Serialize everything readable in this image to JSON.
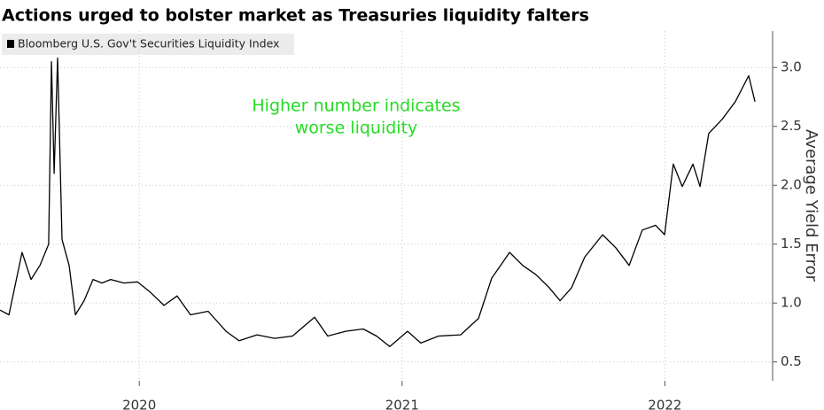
{
  "chart_data": {
    "type": "line",
    "title": "Actions urged to bolster market as Treasuries liquidity falters",
    "y_label": "Average Yield Error",
    "annotation": [
      "Higher number indicates",
      "worse liquidity"
    ],
    "annotation_color": "#22dd22",
    "grid": true,
    "xlim": [
      2019.47,
      2022.41
    ],
    "xticks": [
      2020,
      2021,
      2022
    ],
    "ylim": [
      0.34,
      3.31
    ],
    "yticks": [
      0.5,
      {
        "value": 1,
        "label": "1.0"
      },
      1.5,
      {
        "value": 2,
        "label": "2.0"
      },
      2.5,
      {
        "value": 3,
        "label": "3.0"
      }
    ],
    "x": [
      2019.47,
      2019.504,
      2019.554,
      2019.588,
      2019.622,
      2019.655,
      2019.666,
      2019.676,
      2019.689,
      2019.706,
      2019.733,
      2019.757,
      2019.79,
      2019.824,
      2019.858,
      2019.891,
      2019.942,
      2019.993,
      2020.043,
      2020.094,
      2020.144,
      2020.195,
      2020.262,
      2020.33,
      2020.38,
      2020.448,
      2020.515,
      2020.583,
      2020.667,
      2020.717,
      2020.785,
      2020.852,
      2020.903,
      2020.953,
      2021.021,
      2021.071,
      2021.139,
      2021.223,
      2021.291,
      2021.341,
      2021.375,
      2021.409,
      2021.459,
      2021.51,
      2021.56,
      2021.601,
      2021.645,
      2021.695,
      2021.763,
      2021.813,
      2021.864,
      2021.914,
      2021.965,
      2021.999,
      2022.032,
      2022.066,
      2022.107,
      2022.134,
      2022.167,
      2022.218,
      2022.268,
      2022.319,
      2022.343
    ],
    "series": [
      {
        "name": "Bloomberg U.S. Gov't Securities Liquidity Index",
        "color": "#000000",
        "values": [
          0.94,
          0.9,
          1.43,
          1.2,
          1.32,
          1.5,
          3.05,
          2.1,
          3.08,
          1.54,
          1.32,
          0.9,
          1.02,
          1.2,
          1.17,
          1.2,
          1.17,
          1.18,
          1.09,
          0.98,
          1.06,
          0.9,
          0.93,
          0.76,
          0.68,
          0.73,
          0.7,
          0.72,
          0.88,
          0.72,
          0.76,
          0.78,
          0.72,
          0.63,
          0.76,
          0.66,
          0.72,
          0.73,
          0.87,
          1.21,
          1.32,
          1.43,
          1.32,
          1.24,
          1.13,
          1.02,
          1.13,
          1.39,
          1.58,
          1.47,
          1.32,
          1.62,
          1.66,
          1.58,
          2.18,
          1.99,
          2.18,
          1.99,
          2.44,
          2.56,
          2.71,
          2.93,
          2.71
        ]
      }
    ]
  }
}
